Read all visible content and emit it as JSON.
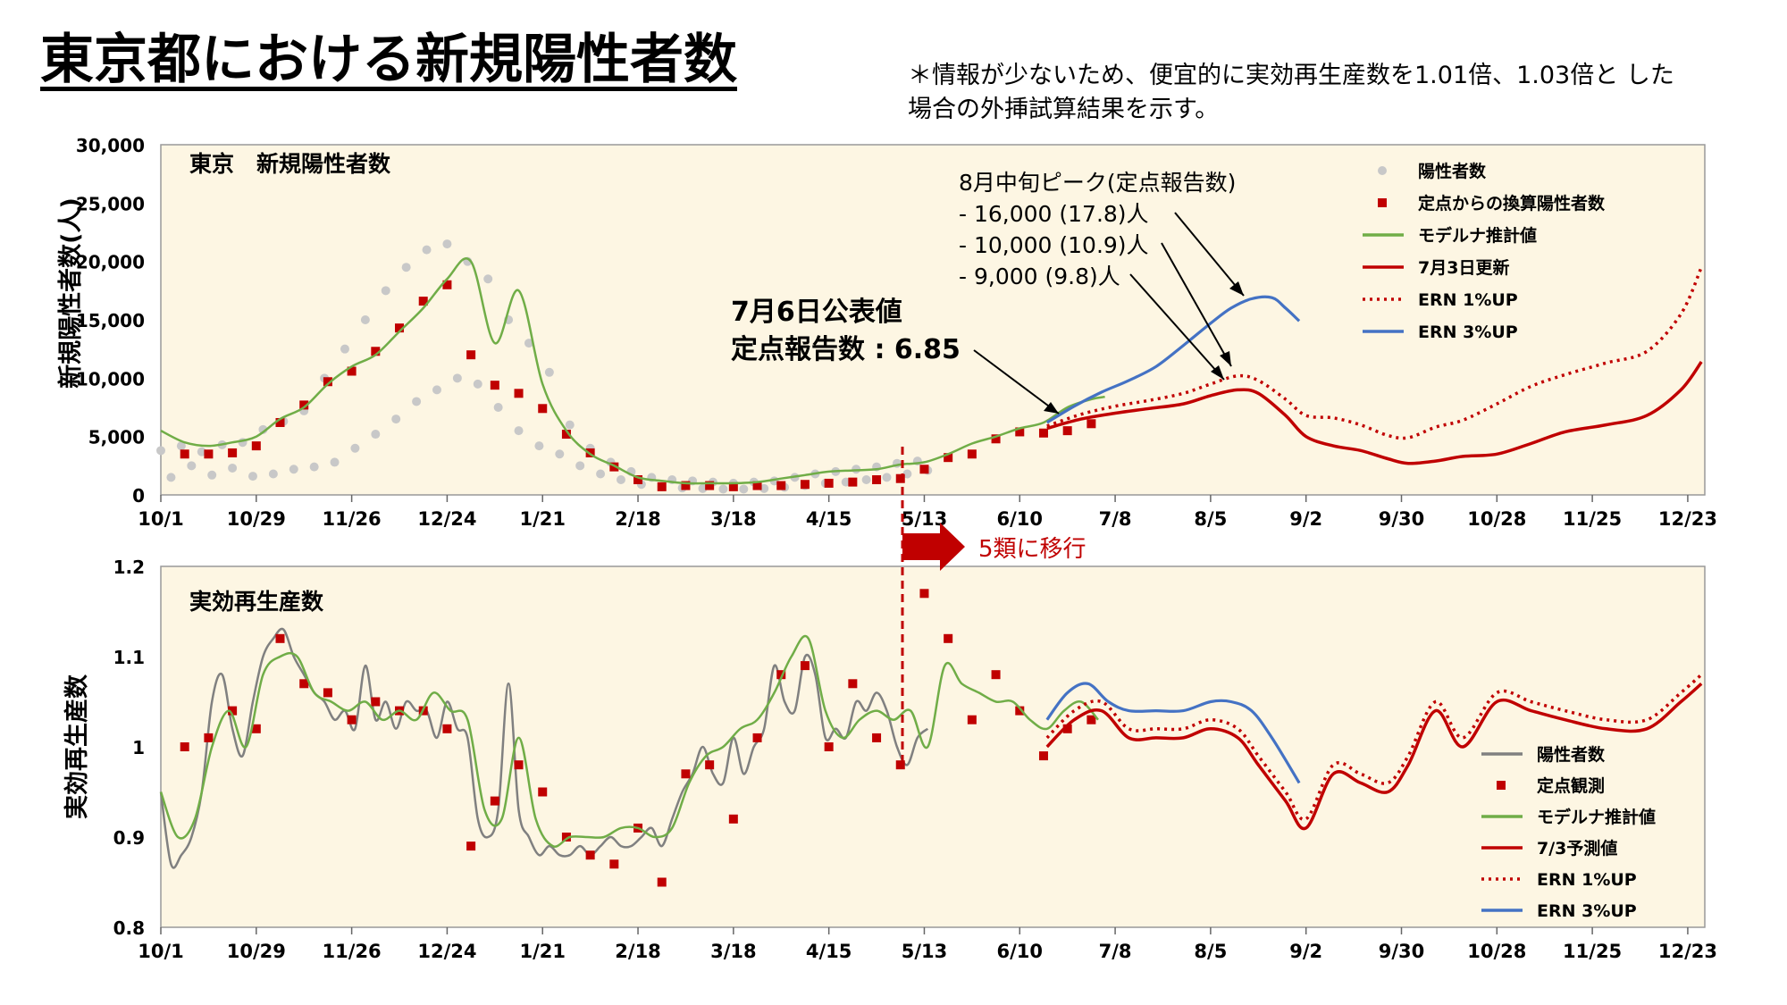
{
  "page": {
    "title": "東京都における新規陽性者数",
    "note": "＊情報が少ないため、便宜的に実効再生産数を1.01倍、1.03倍と した場合の外挿試算結果を示す。"
  },
  "colors": {
    "plot_background": "#fdf6e3",
    "positive_dots": "#c8c8c8",
    "sentinel_markers": "#c00000",
    "moderna": "#70ad47",
    "update_0703": "#c00000",
    "ern_1pct": "#c00000",
    "ern_3pct": "#4472c4",
    "positive_line": "#808080"
  },
  "annotations": {
    "transition_label": "5類に移行",
    "public_value_line1": "7月6日公表値",
    "public_value_line2": "定点報告数 : 6.85",
    "peak_header": "8月中旬ピーク(定点報告数)",
    "peak_1": "- 16,000 (17.8)人",
    "peak_2": "- 10,000 (10.9)人",
    "peak_3": "- 9,000 (9.8)人"
  },
  "chart_data": [
    {
      "type": "line",
      "title": "東京　新規陽性者数",
      "ylabel": "新規陽性者数(人)",
      "xlabel": "",
      "ylim": [
        0,
        30000
      ],
      "xlim": [
        "10/1",
        "12/30"
      ],
      "y_ticks": [
        "0",
        "5,000",
        "10,000",
        "15,000",
        "20,000",
        "25,000",
        "30,000"
      ],
      "x_tick_labels": [
        "10/1",
        "10/29",
        "11/26",
        "12/24",
        "1/21",
        "2/18",
        "3/18",
        "4/15",
        "5/13",
        "6/10",
        "7/8",
        "8/5",
        "9/2",
        "9/30",
        "10/28",
        "11/25",
        "12/23"
      ],
      "x_tick_days": [
        0,
        28,
        56,
        84,
        112,
        140,
        168,
        196,
        224,
        252,
        280,
        308,
        336,
        364,
        392,
        420,
        448
      ],
      "legend": {
        "position": "top-right"
      },
      "series": [
        {
          "name": "陽性者数",
          "kind": "dots",
          "x": [
            0,
            3,
            6,
            9,
            12,
            15,
            18,
            21,
            24,
            27,
            30,
            33,
            36,
            39,
            42,
            45,
            48,
            51,
            54,
            57,
            60,
            63,
            66,
            69,
            72,
            75,
            78,
            81,
            84,
            87,
            90,
            93,
            96,
            99,
            102,
            105,
            108,
            111,
            114,
            117,
            120,
            123,
            126,
            129,
            132,
            135,
            138,
            141,
            144,
            147,
            150,
            153,
            156,
            159,
            162,
            165,
            168,
            171,
            174,
            177,
            180,
            183,
            186,
            189,
            192,
            195,
            198,
            201,
            204,
            207,
            210,
            213,
            216,
            219,
            222,
            225
          ],
          "y": [
            3800,
            1500,
            4200,
            2500,
            3700,
            1700,
            4300,
            2300,
            4500,
            1600,
            5600,
            1800,
            6300,
            2200,
            7200,
            2400,
            10000,
            2800,
            12500,
            4000,
            15000,
            5200,
            17500,
            6500,
            19500,
            8000,
            21000,
            9000,
            21500,
            10000,
            20000,
            9500,
            18500,
            7500,
            15000,
            5500,
            13000,
            4200,
            10500,
            3500,
            6000,
            2500,
            4000,
            1800,
            2800,
            1300,
            2000,
            900,
            1500,
            700,
            1300,
            600,
            1200,
            550,
            1100,
            500,
            1000,
            500,
            1100,
            550,
            1200,
            650,
            1500,
            800,
            1800,
            1000,
            2000,
            1100,
            2200,
            1300,
            2400,
            1500,
            2700,
            1800,
            2900,
            2100
          ]
        },
        {
          "name": "定点からの換算陽性者数",
          "kind": "markers",
          "x": [
            7,
            14,
            21,
            28,
            35,
            42,
            49,
            56,
            63,
            70,
            77,
            84,
            91,
            98,
            105,
            112,
            119,
            126,
            133,
            140,
            147,
            154,
            161,
            168,
            175,
            182,
            189,
            196,
            203,
            210,
            217,
            224,
            231,
            238,
            245,
            252,
            259,
            266,
            273
          ],
          "y": [
            3500,
            3500,
            3600,
            4200,
            6200,
            7700,
            9700,
            10600,
            12300,
            14300,
            16600,
            18000,
            12000,
            9400,
            8700,
            7400,
            5200,
            3600,
            2400,
            1300,
            700,
            800,
            800,
            700,
            800,
            800,
            900,
            1000,
            1100,
            1300,
            1400,
            2200,
            3200,
            3500,
            4800,
            5400,
            5300,
            5500,
            6100
          ]
        },
        {
          "name": "モデルナ推計値",
          "kind": "line",
          "x": [
            0,
            7,
            14,
            21,
            28,
            35,
            42,
            49,
            56,
            63,
            70,
            77,
            84,
            91,
            98,
            105,
            112,
            119,
            126,
            133,
            140,
            147,
            154,
            161,
            168,
            175,
            182,
            189,
            196,
            203,
            210,
            217,
            224,
            231,
            238,
            245,
            252,
            259,
            266,
            273,
            277
          ],
          "y": [
            5500,
            4500,
            4200,
            4500,
            5000,
            6500,
            7500,
            9500,
            11000,
            12000,
            14000,
            16000,
            18500,
            20000,
            13000,
            17500,
            9500,
            5500,
            3500,
            2500,
            1500,
            1200,
            1000,
            1000,
            1000,
            1100,
            1400,
            1700,
            2000,
            2100,
            2200,
            2600,
            2800,
            3500,
            4400,
            5000,
            5700,
            6200,
            7500,
            8200,
            8400
          ]
        },
        {
          "name": "7月3日更新",
          "kind": "line",
          "x": [
            260,
            270,
            280,
            290,
            300,
            308,
            316,
            322,
            330,
            336,
            344,
            352,
            360,
            366,
            374,
            382,
            392,
            402,
            412,
            424,
            436,
            446,
            452
          ],
          "y": [
            5700,
            6500,
            7000,
            7400,
            7800,
            8500,
            9000,
            8700,
            6800,
            5000,
            4200,
            3800,
            3100,
            2700,
            2900,
            3300,
            3500,
            4400,
            5400,
            6000,
            6800,
            9000,
            11400
          ]
        },
        {
          "name": "ERN 1%UP",
          "kind": "dotted",
          "x": [
            260,
            270,
            280,
            290,
            300,
            308,
            316,
            322,
            330,
            336,
            344,
            352,
            360,
            366,
            374,
            382,
            392,
            402,
            412,
            424,
            436,
            446,
            452
          ],
          "y": [
            5900,
            6900,
            7600,
            8100,
            8700,
            9500,
            10200,
            9800,
            8200,
            6800,
            6600,
            6000,
            5100,
            4900,
            5800,
            6400,
            7800,
            9300,
            10300,
            11300,
            12300,
            15500,
            19500
          ]
        },
        {
          "name": "ERN 3%UP",
          "kind": "line",
          "x": [
            260,
            268,
            276,
            284,
            292,
            300,
            308,
            314,
            320,
            326,
            330,
            334
          ],
          "y": [
            6200,
            7600,
            8800,
            9800,
            11000,
            12800,
            14700,
            16000,
            16800,
            16900,
            16000,
            14900
          ]
        }
      ]
    },
    {
      "type": "line",
      "title": "実効再生産数",
      "ylabel": "実効再生産数",
      "xlabel": "",
      "ylim": [
        0.8,
        1.2
      ],
      "xlim": [
        "10/1",
        "12/30"
      ],
      "y_ticks": [
        "0.8",
        "0.9",
        "1",
        "1.1",
        "1.2"
      ],
      "x_tick_labels": [
        "10/1",
        "10/29",
        "11/26",
        "12/24",
        "1/21",
        "2/18",
        "3/18",
        "4/15",
        "5/13",
        "6/10",
        "7/8",
        "8/5",
        "9/2",
        "9/30",
        "10/28",
        "11/25",
        "12/23"
      ],
      "x_tick_days": [
        0,
        28,
        56,
        84,
        112,
        140,
        168,
        196,
        224,
        252,
        280,
        308,
        336,
        364,
        392,
        420,
        448
      ],
      "legend": {
        "position": "bottom-right"
      },
      "series": [
        {
          "name": "陽性者数",
          "kind": "line",
          "x": [
            0,
            3,
            6,
            9,
            12,
            15,
            18,
            21,
            24,
            27,
            30,
            33,
            36,
            39,
            42,
            45,
            48,
            51,
            54,
            57,
            60,
            63,
            66,
            69,
            72,
            75,
            78,
            81,
            84,
            87,
            90,
            93,
            96,
            99,
            102,
            105,
            108,
            111,
            114,
            117,
            120,
            123,
            126,
            129,
            132,
            135,
            138,
            141,
            144,
            147,
            150,
            153,
            156,
            159,
            162,
            165,
            168,
            171,
            174,
            177,
            180,
            183,
            186,
            189,
            192,
            195,
            198,
            201,
            204,
            207,
            210,
            213,
            216,
            219,
            222,
            225
          ],
          "y": [
            0.95,
            0.87,
            0.88,
            0.9,
            0.95,
            1.05,
            1.08,
            1.02,
            0.99,
            1.05,
            1.1,
            1.12,
            1.13,
            1.1,
            1.08,
            1.06,
            1.05,
            1.03,
            1.04,
            1.02,
            1.09,
            1.03,
            1.05,
            1.02,
            1.05,
            1.04,
            1.04,
            1.01,
            1.05,
            1.02,
            1.01,
            0.92,
            0.9,
            0.93,
            1.07,
            0.93,
            0.9,
            0.88,
            0.89,
            0.88,
            0.88,
            0.89,
            0.88,
            0.89,
            0.9,
            0.89,
            0.89,
            0.9,
            0.91,
            0.89,
            0.92,
            0.95,
            0.97,
            1.0,
            0.97,
            0.96,
            1.01,
            0.97,
            1.0,
            1.02,
            1.09,
            1.05,
            1.04,
            1.1,
            1.08,
            1.01,
            1.02,
            1.01,
            1.05,
            1.04,
            1.06,
            1.04,
            1.0,
            0.98,
            1.01,
            1.02
          ]
        },
        {
          "name": "定点観測",
          "kind": "markers",
          "x": [
            7,
            14,
            21,
            28,
            35,
            42,
            49,
            56,
            63,
            70,
            77,
            84,
            91,
            98,
            105,
            112,
            119,
            126,
            133,
            140,
            147,
            154,
            161,
            168,
            175,
            182,
            189,
            196,
            203,
            210,
            217,
            224,
            231,
            238,
            245,
            252,
            259,
            266,
            273
          ],
          "y": [
            1.0,
            1.01,
            1.04,
            1.02,
            1.12,
            1.07,
            1.06,
            1.03,
            1.05,
            1.04,
            1.04,
            1.02,
            0.89,
            0.94,
            0.98,
            0.95,
            0.9,
            0.88,
            0.87,
            0.91,
            0.85,
            0.97,
            0.98,
            0.92,
            1.01,
            1.08,
            1.09,
            1.0,
            1.07,
            1.01,
            0.98,
            1.17,
            1.12,
            1.03,
            1.08,
            1.04,
            0.99,
            1.02,
            1.03
          ]
        },
        {
          "name": "モデルナ推計値",
          "kind": "line",
          "x": [
            0,
            5,
            10,
            15,
            20,
            25,
            30,
            35,
            40,
            45,
            50,
            55,
            60,
            65,
            70,
            75,
            80,
            85,
            90,
            95,
            100,
            105,
            110,
            115,
            120,
            125,
            130,
            135,
            140,
            145,
            150,
            155,
            160,
            165,
            170,
            175,
            180,
            185,
            190,
            195,
            200,
            205,
            210,
            215,
            220,
            225,
            230,
            235,
            240,
            245,
            250,
            255,
            260,
            265,
            270,
            275
          ],
          "y": [
            0.95,
            0.9,
            0.92,
            1.0,
            1.04,
            1.0,
            1.08,
            1.1,
            1.1,
            1.06,
            1.05,
            1.04,
            1.05,
            1.03,
            1.04,
            1.03,
            1.06,
            1.04,
            1.03,
            0.93,
            0.92,
            1.01,
            0.92,
            0.89,
            0.9,
            0.9,
            0.9,
            0.91,
            0.91,
            0.9,
            0.91,
            0.96,
            0.99,
            1.0,
            1.02,
            1.03,
            1.06,
            1.1,
            1.12,
            1.04,
            1.01,
            1.03,
            1.04,
            1.03,
            1.04,
            1.0,
            1.09,
            1.07,
            1.06,
            1.05,
            1.05,
            1.03,
            1.02,
            1.04,
            1.05,
            1.03
          ]
        },
        {
          "name": "7/3予測値",
          "kind": "line",
          "x": [
            260,
            268,
            276,
            284,
            292,
            300,
            308,
            316,
            322,
            330,
            336,
            344,
            352,
            360,
            366,
            374,
            382,
            392,
            402,
            412,
            424,
            436,
            446,
            452
          ],
          "y": [
            1.0,
            1.03,
            1.04,
            1.01,
            1.01,
            1.01,
            1.02,
            1.01,
            0.98,
            0.94,
            0.91,
            0.97,
            0.96,
            0.95,
            0.98,
            1.04,
            1.0,
            1.05,
            1.04,
            1.03,
            1.02,
            1.02,
            1.05,
            1.07
          ]
        },
        {
          "name": "ERN 1%UP",
          "kind": "dotted",
          "x": [
            260,
            268,
            276,
            284,
            292,
            300,
            308,
            316,
            322,
            330,
            336,
            344,
            352,
            360,
            366,
            374,
            382,
            392,
            402,
            412,
            424,
            436,
            446,
            452
          ],
          "y": [
            1.01,
            1.04,
            1.05,
            1.02,
            1.02,
            1.02,
            1.03,
            1.02,
            0.99,
            0.95,
            0.92,
            0.98,
            0.97,
            0.96,
            0.99,
            1.05,
            1.01,
            1.06,
            1.05,
            1.04,
            1.03,
            1.03,
            1.06,
            1.08
          ]
        },
        {
          "name": "ERN 3%UP",
          "kind": "line",
          "x": [
            260,
            266,
            272,
            278,
            284,
            292,
            300,
            308,
            314,
            320,
            326,
            334
          ],
          "y": [
            1.03,
            1.06,
            1.07,
            1.05,
            1.04,
            1.04,
            1.04,
            1.05,
            1.05,
            1.04,
            1.01,
            0.96
          ]
        }
      ]
    }
  ]
}
